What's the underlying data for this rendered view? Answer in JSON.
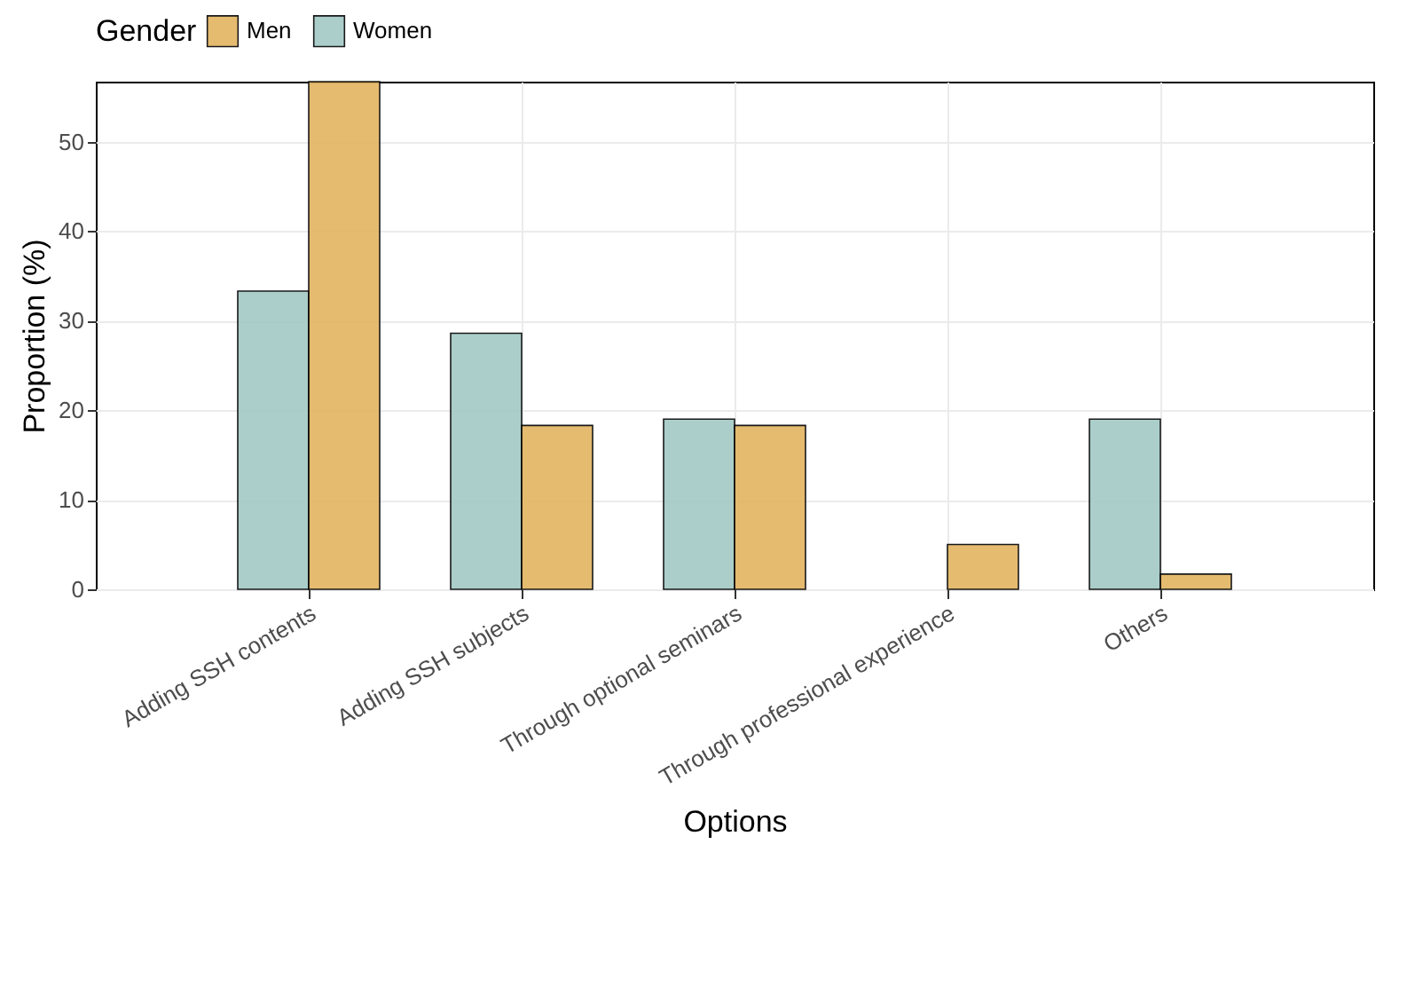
{
  "chart_data": {
    "type": "bar",
    "xlabel": "Options",
    "ylabel": "Proportion (%)",
    "legend_title": "Gender",
    "legend": "top",
    "categories": [
      "Adding SSH contents",
      "Adding SSH subjects",
      "Through optional seminars",
      "Through professional experience",
      "Others"
    ],
    "series": [
      {
        "name": "Women",
        "color": "#a2c9c5",
        "values": [
          33.3,
          28.6,
          19.0,
          null,
          19.0
        ]
      },
      {
        "name": "Men",
        "color": "#e3b461",
        "values": [
          56.7,
          18.3,
          18.3,
          5.0,
          1.7
        ]
      }
    ],
    "ylim": [
      0,
      56.7
    ],
    "yticks": [
      0,
      10,
      20,
      30,
      40,
      50
    ],
    "grid": true
  }
}
